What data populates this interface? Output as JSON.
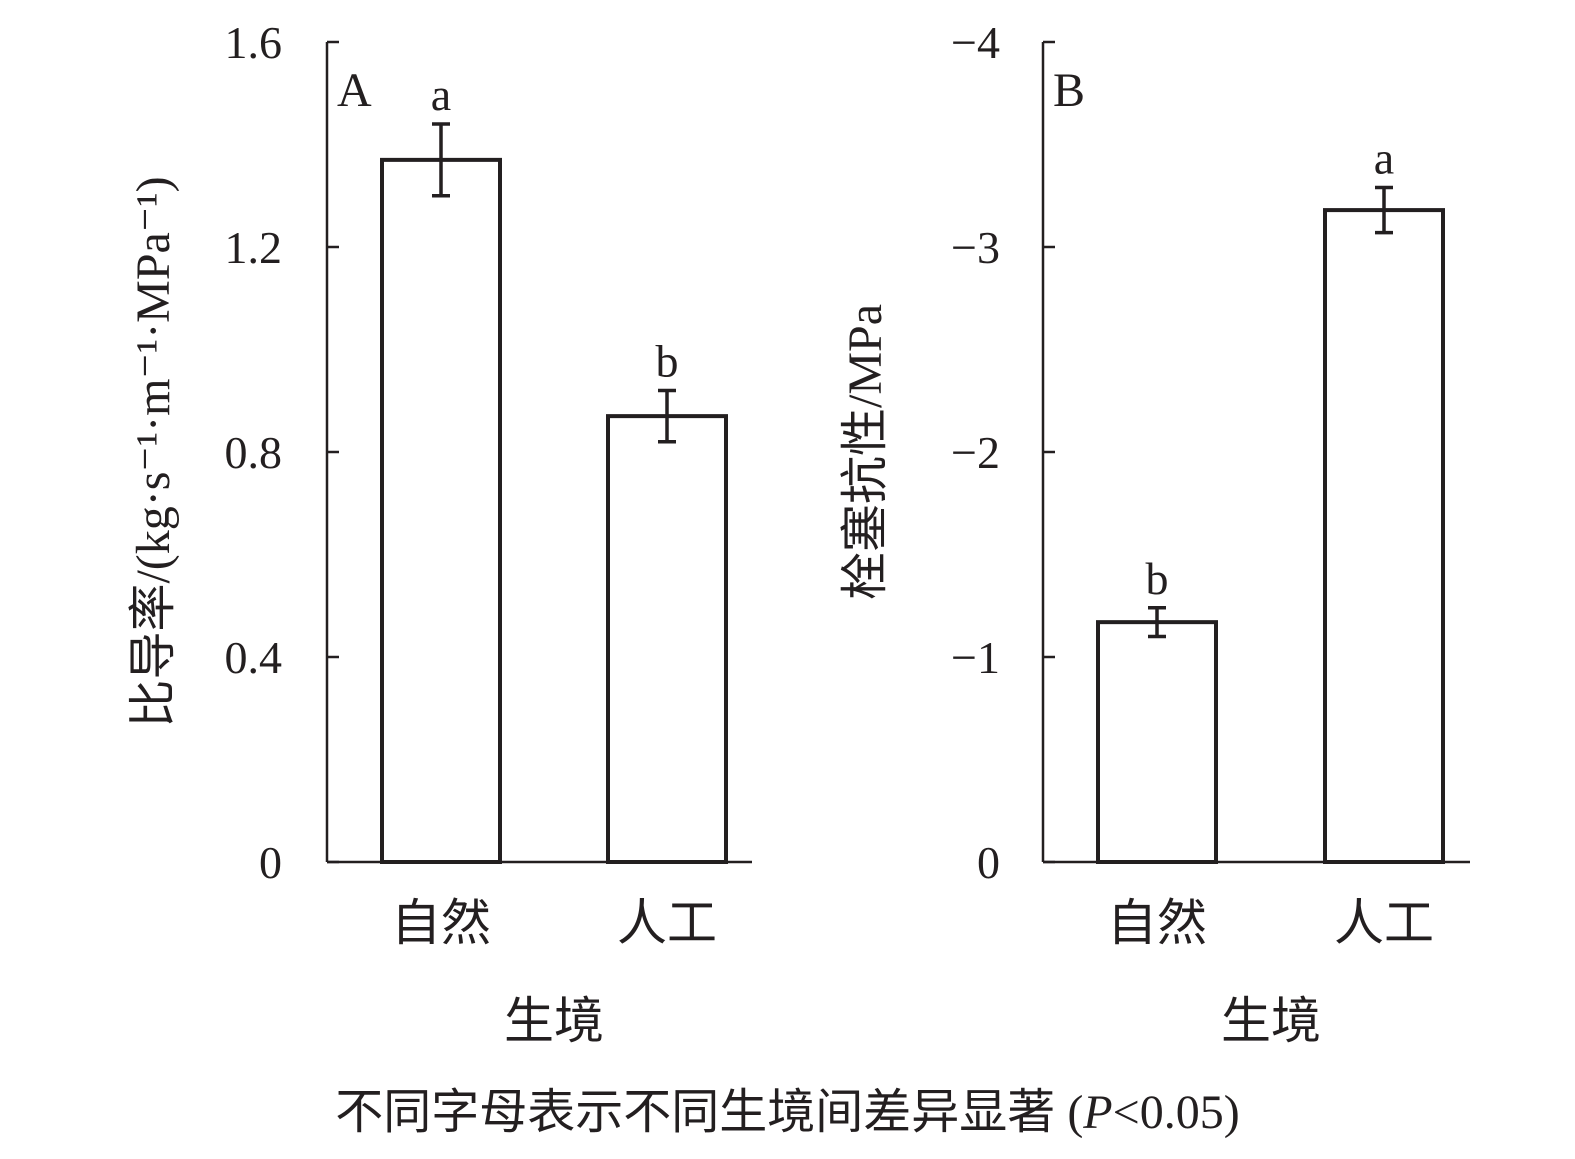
{
  "caption": {
    "main": "不同字母表示不同生境间差异显著",
    "stat_open": " (",
    "stat_var": "P",
    "stat_rest": "<0.05)"
  },
  "chart_data": [
    {
      "type": "bar",
      "panel_label": "A",
      "categories": [
        "自然",
        "人工"
      ],
      "values": [
        1.37,
        0.87
      ],
      "errors": [
        0.07,
        0.05
      ],
      "significance": [
        "a",
        "b"
      ],
      "xlabel": "生境",
      "ylabel": "比导率/(kg·s⁻¹·m⁻¹·MPa⁻¹)",
      "ylim": [
        0,
        1.6
      ],
      "yticks": [
        0,
        0.4,
        0.8,
        1.2,
        1.6
      ],
      "ytick_labels": [
        "0",
        "0.4",
        "0.8",
        "1.2",
        "1.6"
      ],
      "grid": false,
      "legend": "none"
    },
    {
      "type": "bar",
      "panel_label": "B",
      "categories": [
        "自然",
        "人工"
      ],
      "values": [
        -1.17,
        -3.18
      ],
      "errors": [
        0.07,
        0.11
      ],
      "significance": [
        "b",
        "a"
      ],
      "xlabel": "生境",
      "ylabel": "栓塞抗性/MPa",
      "ylim": [
        0,
        -4
      ],
      "yticks": [
        0,
        -1,
        -2,
        -3,
        -4
      ],
      "ytick_labels": [
        "0",
        "−1",
        "−2",
        "−3",
        "−4"
      ],
      "grid": false,
      "legend": "none"
    }
  ]
}
